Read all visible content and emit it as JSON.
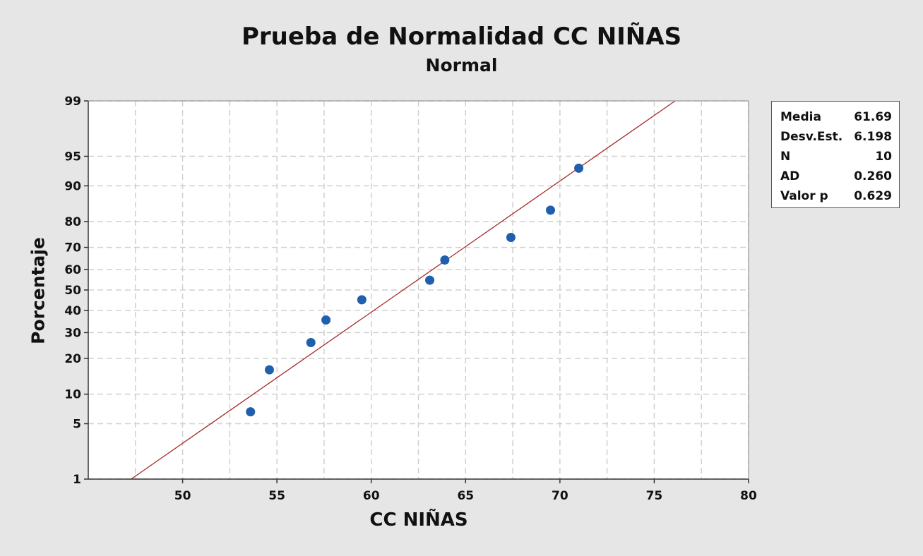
{
  "colors": {
    "background": "#e6e6e6",
    "plot_background": "#ffffff",
    "grid": "#d0d0d0",
    "fit_line": "#a52a2a",
    "points": "#1f5fae"
  },
  "stats": [
    {
      "label": "Media",
      "value": "61.69"
    },
    {
      "label": "Desv.Est.",
      "value": "6.198"
    },
    {
      "label": "N",
      "value": "10"
    },
    {
      "label": "AD",
      "value": "0.260"
    },
    {
      "label": "Valor p",
      "value": "0.629"
    }
  ],
  "chart_data": {
    "type": "scatter",
    "title": "Prueba de Normalidad CC NIÑAS",
    "subtitle": "Normal",
    "xlabel": "CC NIÑAS",
    "ylabel": "Porcentaje",
    "y_scale": "normal-probability",
    "xlim": [
      45,
      80
    ],
    "ylim": [
      1,
      99
    ],
    "x_ticks": [
      50,
      55,
      60,
      65,
      70,
      75,
      80
    ],
    "x_grid": [
      47.5,
      50,
      52.5,
      55,
      57.5,
      60,
      62.5,
      65,
      67.5,
      70,
      72.5,
      75,
      77.5,
      80
    ],
    "y_ticks": [
      1,
      5,
      10,
      20,
      30,
      40,
      50,
      60,
      70,
      80,
      90,
      95,
      99
    ],
    "grid": true,
    "series": [
      {
        "x": [
          53.6,
          54.6,
          56.8,
          57.6,
          59.5,
          63.1,
          63.9,
          67.4,
          69.5,
          71.0
        ],
        "y": [
          6.7,
          16.3,
          25.9,
          35.6,
          45.2,
          54.8,
          64.4,
          74.1,
          83.7,
          93.3
        ]
      }
    ],
    "fit_line": {
      "mean": 61.69,
      "stdev": 6.198
    }
  }
}
